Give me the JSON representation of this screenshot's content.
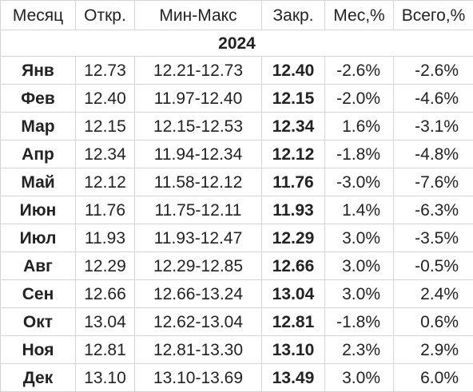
{
  "headers": {
    "month": "Месяц",
    "open": "Откр.",
    "range": "Мин-Макс",
    "close": "Закр.",
    "month_pct": "Мес,%",
    "total_pct": "Всего,%"
  },
  "year_label": "2024",
  "rows": [
    {
      "month": "Янв",
      "open": "12.73",
      "range": "12.21-12.73",
      "close": "12.40",
      "month_pct": "-2.6%",
      "total_pct": "-2.6%"
    },
    {
      "month": "Фев",
      "open": "12.40",
      "range": "11.97-12.40",
      "close": "12.15",
      "month_pct": "-2.0%",
      "total_pct": "-4.6%"
    },
    {
      "month": "Мар",
      "open": "12.15",
      "range": "12.15-12.53",
      "close": "12.34",
      "month_pct": "1.6%",
      "total_pct": "-3.1%"
    },
    {
      "month": "Апр",
      "open": "12.34",
      "range": "11.94-12.34",
      "close": "12.12",
      "month_pct": "-1.8%",
      "total_pct": "-4.8%"
    },
    {
      "month": "Май",
      "open": "12.12",
      "range": "11.58-12.12",
      "close": "11.76",
      "month_pct": "-3.0%",
      "total_pct": "-7.6%"
    },
    {
      "month": "Июн",
      "open": "11.76",
      "range": "11.75-12.11",
      "close": "11.93",
      "month_pct": "1.4%",
      "total_pct": "-6.3%"
    },
    {
      "month": "Июл",
      "open": "11.93",
      "range": "11.93-12.47",
      "close": "12.29",
      "month_pct": "3.0%",
      "total_pct": "-3.5%"
    },
    {
      "month": "Авг",
      "open": "12.29",
      "range": "12.29-12.85",
      "close": "12.66",
      "month_pct": "3.0%",
      "total_pct": "-0.5%"
    },
    {
      "month": "Сен",
      "open": "12.66",
      "range": "12.66-13.24",
      "close": "13.04",
      "month_pct": "3.0%",
      "total_pct": "2.4%"
    },
    {
      "month": "Окт",
      "open": "13.04",
      "range": "12.62-13.04",
      "close": "12.81",
      "month_pct": "-1.8%",
      "total_pct": "0.6%"
    },
    {
      "month": "Ноя",
      "open": "12.81",
      "range": "12.81-13.30",
      "close": "13.10",
      "month_pct": "2.3%",
      "total_pct": "2.9%"
    },
    {
      "month": "Дек",
      "open": "13.10",
      "range": "13.10-13.69",
      "close": "13.49",
      "month_pct": "3.0%",
      "total_pct": "6.0%"
    }
  ]
}
